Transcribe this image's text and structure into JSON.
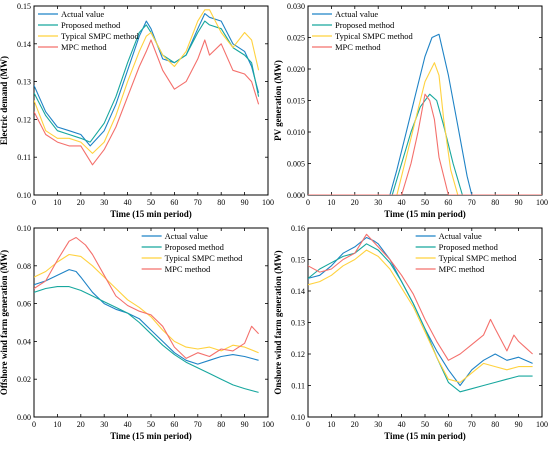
{
  "colors": {
    "actual": "#1f83c6",
    "proposed": "#17a79e",
    "smpc": "#ffd23f",
    "mpc": "#f4706c"
  },
  "chart_data": [
    {
      "type": "line",
      "xlabel": "Time (15 min period)",
      "ylabel": "Electric demand (MW)",
      "xlim": [
        0,
        100
      ],
      "ylim": [
        0.1,
        0.15
      ],
      "xticks": [
        "0",
        "10",
        "20",
        "30",
        "40",
        "50",
        "60",
        "70",
        "80",
        "90",
        "100"
      ],
      "yticks": [
        "0.10",
        "0.11",
        "0.12",
        "0.13",
        "0.14",
        "0.15"
      ],
      "legend_position": "top-left",
      "series": [
        {
          "name": "Actual value",
          "color_key": "actual",
          "x": [
            0,
            5,
            10,
            15,
            20,
            24,
            30,
            35,
            40,
            45,
            48,
            50,
            55,
            60,
            65,
            70,
            73,
            75,
            80,
            85,
            90,
            93,
            96
          ],
          "y": [
            0.129,
            0.122,
            0.118,
            0.117,
            0.116,
            0.113,
            0.117,
            0.124,
            0.133,
            0.142,
            0.146,
            0.144,
            0.136,
            0.135,
            0.137,
            0.144,
            0.148,
            0.147,
            0.146,
            0.14,
            0.138,
            0.134,
            0.127
          ]
        },
        {
          "name": "Proposed method",
          "color_key": "proposed",
          "x": [
            0,
            5,
            10,
            15,
            20,
            24,
            30,
            35,
            40,
            45,
            48,
            50,
            55,
            60,
            65,
            70,
            73,
            75,
            80,
            85,
            90,
            93,
            96
          ],
          "y": [
            0.127,
            0.121,
            0.117,
            0.116,
            0.115,
            0.114,
            0.119,
            0.126,
            0.135,
            0.143,
            0.145,
            0.143,
            0.137,
            0.135,
            0.137,
            0.143,
            0.146,
            0.145,
            0.144,
            0.139,
            0.137,
            0.135,
            0.126
          ]
        },
        {
          "name": "Typical SMPC method",
          "color_key": "smpc",
          "x": [
            0,
            5,
            10,
            15,
            20,
            25,
            30,
            35,
            40,
            45,
            48,
            50,
            55,
            60,
            65,
            70,
            73,
            75,
            80,
            85,
            90,
            93,
            96
          ],
          "y": [
            0.125,
            0.117,
            0.115,
            0.115,
            0.114,
            0.111,
            0.114,
            0.121,
            0.13,
            0.138,
            0.142,
            0.143,
            0.137,
            0.134,
            0.138,
            0.146,
            0.149,
            0.149,
            0.143,
            0.139,
            0.143,
            0.141,
            0.133
          ]
        },
        {
          "name": "MPC method",
          "color_key": "mpc",
          "x": [
            0,
            5,
            10,
            15,
            20,
            25,
            30,
            35,
            40,
            45,
            48,
            50,
            55,
            60,
            65,
            70,
            73,
            75,
            80,
            85,
            90,
            93,
            96
          ],
          "y": [
            0.122,
            0.116,
            0.114,
            0.113,
            0.113,
            0.108,
            0.112,
            0.118,
            0.126,
            0.134,
            0.138,
            0.141,
            0.133,
            0.128,
            0.13,
            0.136,
            0.141,
            0.137,
            0.14,
            0.133,
            0.132,
            0.13,
            0.124
          ]
        }
      ]
    },
    {
      "type": "line",
      "xlabel": "Time (15 min period)",
      "ylabel": "PV generation (MW)",
      "xlim": [
        0,
        100
      ],
      "ylim": [
        0,
        0.03
      ],
      "xticks": [
        "0",
        "10",
        "20",
        "30",
        "40",
        "50",
        "60",
        "70",
        "80",
        "90",
        "100"
      ],
      "yticks": [
        "0.000",
        "0.005",
        "0.010",
        "0.015",
        "0.020",
        "0.025",
        "0.030"
      ],
      "legend_position": "top-left",
      "series": [
        {
          "name": "Actual value",
          "color_key": "actual",
          "x": [
            0,
            35,
            38,
            42,
            46,
            50,
            53,
            56,
            60,
            64,
            68,
            70,
            100
          ],
          "y": [
            0,
            0,
            0.004,
            0.01,
            0.016,
            0.022,
            0.025,
            0.0255,
            0.019,
            0.011,
            0.003,
            0,
            0
          ]
        },
        {
          "name": "Proposed method",
          "color_key": "proposed",
          "x": [
            0,
            36,
            40,
            44,
            48,
            52,
            55,
            58,
            62,
            66,
            100
          ],
          "y": [
            0,
            0,
            0.005,
            0.01,
            0.014,
            0.016,
            0.015,
            0.011,
            0.005,
            0,
            0
          ]
        },
        {
          "name": "Typical SMPC method",
          "color_key": "smpc",
          "x": [
            0,
            38,
            42,
            46,
            50,
            54,
            56,
            58,
            61,
            64,
            100
          ],
          "y": [
            0,
            0,
            0.006,
            0.012,
            0.018,
            0.021,
            0.019,
            0.012,
            0.004,
            0,
            0
          ]
        },
        {
          "name": "MPC method",
          "color_key": "mpc",
          "x": [
            0,
            40,
            44,
            47,
            50,
            52,
            54,
            56,
            58,
            60,
            100
          ],
          "y": [
            0,
            0,
            0.005,
            0.01,
            0.016,
            0.015,
            0.012,
            0.006,
            0.003,
            0,
            0
          ]
        }
      ]
    },
    {
      "type": "line",
      "xlabel": "Time (15 min period)",
      "ylabel": "Offshore wind farm generation (MW)",
      "xlim": [
        0,
        100
      ],
      "ylim": [
        0,
        0.1
      ],
      "xticks": [
        "0",
        "10",
        "20",
        "30",
        "40",
        "50",
        "60",
        "70",
        "80",
        "90",
        "100"
      ],
      "yticks": [
        "0.00",
        "0.02",
        "0.04",
        "0.06",
        "0.08",
        "0.10"
      ],
      "legend_position": "top-right",
      "series": [
        {
          "name": "Actual value",
          "color_key": "actual",
          "x": [
            0,
            5,
            10,
            15,
            18,
            20,
            25,
            30,
            35,
            40,
            45,
            50,
            55,
            60,
            65,
            70,
            75,
            80,
            85,
            90,
            96
          ],
          "y": [
            0.07,
            0.072,
            0.075,
            0.078,
            0.077,
            0.074,
            0.066,
            0.06,
            0.057,
            0.055,
            0.052,
            0.046,
            0.04,
            0.034,
            0.03,
            0.028,
            0.03,
            0.032,
            0.033,
            0.032,
            0.03
          ]
        },
        {
          "name": "Proposed method",
          "color_key": "proposed",
          "x": [
            0,
            5,
            10,
            15,
            20,
            25,
            30,
            35,
            40,
            45,
            50,
            55,
            60,
            65,
            70,
            75,
            80,
            85,
            90,
            96
          ],
          "y": [
            0.066,
            0.068,
            0.069,
            0.069,
            0.067,
            0.064,
            0.061,
            0.058,
            0.055,
            0.05,
            0.044,
            0.038,
            0.033,
            0.029,
            0.026,
            0.023,
            0.02,
            0.017,
            0.015,
            0.013
          ]
        },
        {
          "name": "Typical SMPC method",
          "color_key": "smpc",
          "x": [
            0,
            5,
            10,
            15,
            20,
            25,
            30,
            35,
            40,
            45,
            50,
            55,
            60,
            65,
            70,
            75,
            80,
            85,
            90,
            96
          ],
          "y": [
            0.074,
            0.077,
            0.082,
            0.086,
            0.085,
            0.08,
            0.074,
            0.068,
            0.062,
            0.058,
            0.053,
            0.046,
            0.04,
            0.037,
            0.036,
            0.037,
            0.035,
            0.038,
            0.037,
            0.034
          ]
        },
        {
          "name": "MPC method",
          "color_key": "mpc",
          "x": [
            0,
            5,
            10,
            15,
            18,
            22,
            25,
            30,
            35,
            40,
            45,
            50,
            55,
            60,
            65,
            70,
            75,
            80,
            85,
            90,
            93,
            96
          ],
          "y": [
            0.068,
            0.072,
            0.083,
            0.093,
            0.095,
            0.091,
            0.086,
            0.075,
            0.064,
            0.059,
            0.056,
            0.054,
            0.048,
            0.037,
            0.031,
            0.034,
            0.032,
            0.036,
            0.035,
            0.039,
            0.048,
            0.044
          ]
        }
      ]
    },
    {
      "type": "line",
      "xlabel": "Time (15 min period)",
      "ylabel": "Onshore wind farm generation (MW)",
      "xlim": [
        0,
        100
      ],
      "ylim": [
        0.1,
        0.16
      ],
      "xticks": [
        "0",
        "10",
        "20",
        "30",
        "40",
        "50",
        "60",
        "70",
        "80",
        "90",
        "100"
      ],
      "yticks": [
        "0.10",
        "0.11",
        "0.12",
        "0.13",
        "0.14",
        "0.15",
        "0.16"
      ],
      "legend_position": "top-right",
      "series": [
        {
          "name": "Actual value",
          "color_key": "actual",
          "x": [
            0,
            5,
            10,
            15,
            20,
            25,
            28,
            30,
            35,
            40,
            45,
            50,
            55,
            60,
            65,
            70,
            75,
            80,
            85,
            90,
            96
          ],
          "y": [
            0.144,
            0.145,
            0.148,
            0.152,
            0.154,
            0.157,
            0.156,
            0.155,
            0.15,
            0.143,
            0.136,
            0.128,
            0.121,
            0.115,
            0.11,
            0.115,
            0.118,
            0.12,
            0.118,
            0.119,
            0.117
          ]
        },
        {
          "name": "Proposed method",
          "color_key": "proposed",
          "x": [
            0,
            5,
            10,
            15,
            20,
            25,
            30,
            35,
            40,
            45,
            50,
            55,
            60,
            65,
            70,
            75,
            80,
            85,
            90,
            96
          ],
          "y": [
            0.144,
            0.147,
            0.149,
            0.151,
            0.152,
            0.155,
            0.153,
            0.149,
            0.143,
            0.136,
            0.128,
            0.119,
            0.111,
            0.108,
            0.109,
            0.11,
            0.111,
            0.112,
            0.113,
            0.113
          ]
        },
        {
          "name": "Typical SMPC method",
          "color_key": "smpc",
          "x": [
            0,
            5,
            10,
            15,
            20,
            25,
            30,
            35,
            40,
            45,
            50,
            55,
            60,
            65,
            70,
            75,
            80,
            85,
            90,
            96
          ],
          "y": [
            0.142,
            0.143,
            0.145,
            0.148,
            0.15,
            0.153,
            0.151,
            0.147,
            0.141,
            0.135,
            0.127,
            0.119,
            0.112,
            0.111,
            0.114,
            0.117,
            0.116,
            0.115,
            0.116,
            0.116
          ]
        },
        {
          "name": "MPC method",
          "color_key": "mpc",
          "x": [
            0,
            5,
            10,
            15,
            20,
            25,
            30,
            35,
            40,
            45,
            50,
            55,
            60,
            65,
            70,
            75,
            78,
            80,
            85,
            88,
            90,
            93,
            96
          ],
          "y": [
            0.148,
            0.146,
            0.147,
            0.15,
            0.152,
            0.158,
            0.154,
            0.15,
            0.145,
            0.139,
            0.131,
            0.124,
            0.118,
            0.12,
            0.123,
            0.126,
            0.131,
            0.128,
            0.121,
            0.126,
            0.124,
            0.122,
            0.12
          ]
        }
      ]
    }
  ]
}
